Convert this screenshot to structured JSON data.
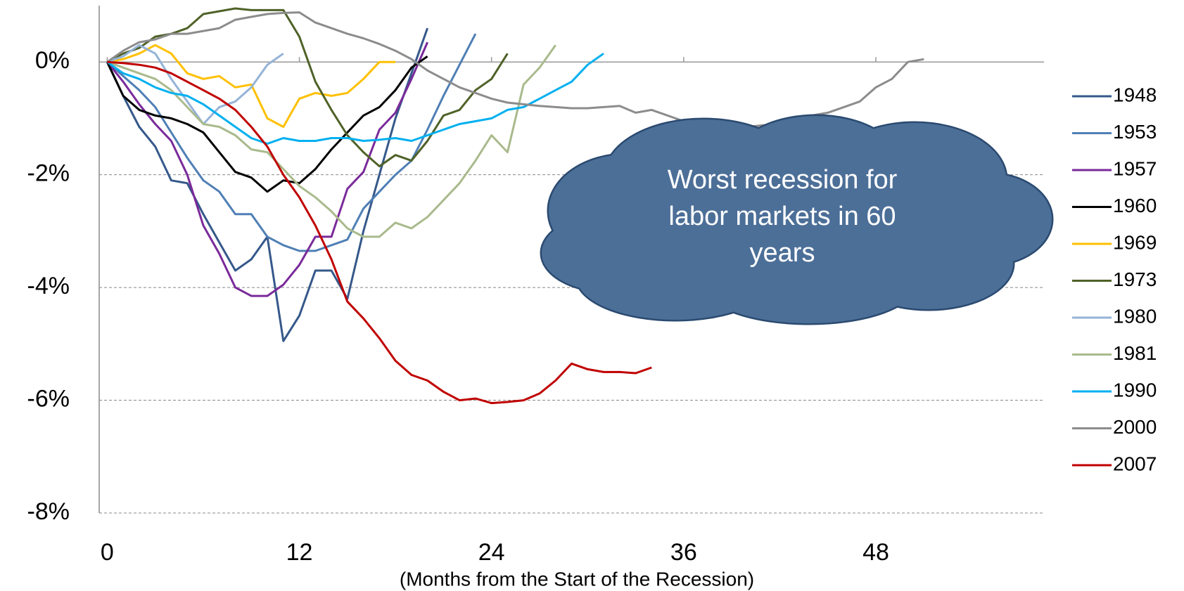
{
  "chart_data": {
    "type": "line",
    "x_label": "(Months from the Start of the Recession)",
    "annotation": [
      "Worst recession for",
      "labor markets in 60",
      "years"
    ],
    "xlim": [
      -0.5,
      58.5
    ],
    "xticks": [
      0,
      12,
      24,
      36,
      48
    ],
    "ylim": [
      -8,
      1
    ],
    "yticks": [
      {
        "value": 0,
        "label": "0%"
      },
      {
        "value": -2,
        "label": "-2%"
      },
      {
        "value": -4,
        "label": "-4%"
      },
      {
        "value": -6,
        "label": "-6%"
      },
      {
        "value": -8,
        "label": "-8%"
      }
    ],
    "grid": true,
    "legend": "right",
    "x": [
      0,
      1,
      2,
      3,
      4,
      5,
      6,
      7,
      8,
      9,
      10,
      11,
      12,
      13,
      14,
      15,
      16,
      17,
      18,
      19,
      20,
      21,
      22,
      23,
      24,
      25,
      26,
      27,
      28,
      29,
      30,
      31,
      32,
      33,
      34,
      35,
      36,
      37,
      38,
      39,
      40,
      41,
      42,
      43,
      44,
      45,
      46,
      47,
      48,
      49,
      50,
      51
    ],
    "series": [
      {
        "name": "1948",
        "color": "#35588a",
        "values": [
          0,
          -0.6,
          -1.15,
          -1.5,
          -2.1,
          -2.15,
          -2.7,
          -3.2,
          -3.7,
          -3.5,
          -3.1,
          -4.95,
          -4.5,
          -3.7,
          -3.7,
          -4.2,
          -3.0,
          -2.0,
          -1.0,
          -0.2,
          0.6,
          null,
          null,
          null,
          null,
          null,
          null,
          null,
          null,
          null,
          null,
          null,
          null,
          null,
          null,
          null,
          null,
          null,
          null,
          null,
          null,
          null,
          null,
          null,
          null,
          null,
          null,
          null,
          null,
          null,
          null,
          null
        ]
      },
      {
        "name": "1953",
        "color": "#4f7fb5",
        "values": [
          0,
          -0.25,
          -0.5,
          -0.8,
          -1.25,
          -1.7,
          -2.1,
          -2.3,
          -2.7,
          -2.7,
          -3.1,
          -3.25,
          -3.35,
          -3.35,
          -3.25,
          -3.15,
          -2.6,
          -2.3,
          -2.0,
          -1.75,
          -1.2,
          -0.6,
          -0.05,
          0.5,
          null,
          null,
          null,
          null,
          null,
          null,
          null,
          null,
          null,
          null,
          null,
          null,
          null,
          null,
          null,
          null,
          null,
          null,
          null,
          null,
          null,
          null,
          null,
          null,
          null,
          null,
          null,
          null
        ]
      },
      {
        "name": "1957",
        "color": "#7a2a9a",
        "values": [
          0,
          -0.35,
          -0.75,
          -1.1,
          -1.4,
          -2.0,
          -2.9,
          -3.4,
          -4.0,
          -4.15,
          -4.15,
          -3.95,
          -3.6,
          -3.1,
          -3.1,
          -2.25,
          -1.95,
          -1.2,
          -0.9,
          -0.3,
          0.35,
          null,
          null,
          null,
          null,
          null,
          null,
          null,
          null,
          null,
          null,
          null,
          null,
          null,
          null,
          null,
          null,
          null,
          null,
          null,
          null,
          null,
          null,
          null,
          null,
          null,
          null,
          null,
          null,
          null,
          null,
          null
        ]
      },
      {
        "name": "1960",
        "color": "#000000",
        "values": [
          0,
          -0.6,
          -0.85,
          -0.95,
          -1.0,
          -1.1,
          -1.25,
          -1.6,
          -1.95,
          -2.05,
          -2.3,
          -2.1,
          -2.15,
          -1.9,
          -1.55,
          -1.25,
          -0.95,
          -0.8,
          -0.5,
          -0.1,
          0.1,
          null,
          null,
          null,
          null,
          null,
          null,
          null,
          null,
          null,
          null,
          null,
          null,
          null,
          null,
          null,
          null,
          null,
          null,
          null,
          null,
          null,
          null,
          null,
          null,
          null,
          null,
          null,
          null,
          null,
          null,
          null
        ]
      },
      {
        "name": "1969",
        "color": "#ffc000",
        "values": [
          0,
          0.05,
          0.15,
          0.3,
          0.15,
          -0.2,
          -0.3,
          -0.25,
          -0.45,
          -0.4,
          -1.0,
          -1.15,
          -0.65,
          -0.55,
          -0.6,
          -0.55,
          -0.3,
          0,
          0,
          null,
          null,
          null,
          null,
          null,
          null,
          null,
          null,
          null,
          null,
          null,
          null,
          null,
          null,
          null,
          null,
          null,
          null,
          null,
          null,
          null,
          null,
          null,
          null,
          null,
          null,
          null,
          null,
          null,
          null,
          null,
          null,
          null
        ]
      },
      {
        "name": "1973",
        "color": "#4f6228",
        "values": [
          0,
          0.15,
          0.25,
          0.45,
          0.5,
          0.6,
          0.85,
          0.9,
          0.95,
          0.92,
          0.92,
          0.92,
          0.45,
          -0.35,
          -0.85,
          -1.3,
          -1.6,
          -1.85,
          -1.65,
          -1.75,
          -1.4,
          -0.95,
          -0.85,
          -0.5,
          -0.3,
          0.15,
          null,
          null,
          null,
          null,
          null,
          null,
          null,
          null,
          null,
          null,
          null,
          null,
          null,
          null,
          null,
          null,
          null,
          null,
          null,
          null,
          null,
          null,
          null,
          null,
          null,
          null
        ]
      },
      {
        "name": "1980",
        "color": "#95b3d7",
        "values": [
          0,
          0.1,
          0.3,
          0.15,
          -0.3,
          -0.7,
          -1.1,
          -0.8,
          -0.7,
          -0.45,
          -0.05,
          0.15,
          null,
          null,
          null,
          null,
          null,
          null,
          null,
          null,
          null,
          null,
          null,
          null,
          null,
          null,
          null,
          null,
          null,
          null,
          null,
          null,
          null,
          null,
          null,
          null,
          null,
          null,
          null,
          null,
          null,
          null,
          null,
          null,
          null,
          null,
          null,
          null,
          null,
          null,
          null,
          null
        ]
      },
      {
        "name": "1981",
        "color": "#a9ba8c",
        "values": [
          0,
          -0.1,
          -0.2,
          -0.3,
          -0.5,
          -0.8,
          -1.1,
          -1.15,
          -1.3,
          -1.55,
          -1.6,
          -1.9,
          -2.2,
          -2.4,
          -2.65,
          -2.95,
          -3.1,
          -3.1,
          -2.85,
          -2.95,
          -2.75,
          -2.45,
          -2.15,
          -1.75,
          -1.3,
          -1.6,
          -0.4,
          -0.1,
          0.3,
          null,
          null,
          null,
          null,
          null,
          null,
          null,
          null,
          null,
          null,
          null,
          null,
          null,
          null,
          null,
          null,
          null,
          null,
          null,
          null,
          null,
          null,
          null
        ]
      },
      {
        "name": "1990",
        "color": "#00b0f0",
        "values": [
          0,
          -0.2,
          -0.3,
          -0.45,
          -0.55,
          -0.6,
          -0.75,
          -0.95,
          -1.15,
          -1.35,
          -1.45,
          -1.35,
          -1.4,
          -1.4,
          -1.35,
          -1.35,
          -1.4,
          -1.38,
          -1.35,
          -1.4,
          -1.3,
          -1.2,
          -1.1,
          -1.05,
          -1.0,
          -0.85,
          -0.8,
          -0.65,
          -0.5,
          -0.35,
          -0.05,
          0.15,
          null,
          null,
          null,
          null,
          null,
          null,
          null,
          null,
          null,
          null,
          null,
          null,
          null,
          null,
          null,
          null,
          null,
          null,
          null,
          null
        ]
      },
      {
        "name": "2000",
        "color": "#8c8c8c",
        "values": [
          0,
          0.2,
          0.35,
          0.4,
          0.5,
          0.5,
          0.55,
          0.6,
          0.75,
          0.8,
          0.85,
          0.87,
          0.88,
          0.7,
          0.6,
          0.5,
          0.42,
          0.32,
          0.2,
          0.05,
          -0.15,
          -0.3,
          -0.45,
          -0.55,
          -0.65,
          -0.72,
          -0.75,
          -0.78,
          -0.8,
          -0.82,
          -0.82,
          -0.8,
          -0.78,
          -0.9,
          -0.85,
          -0.95,
          -1.05,
          -1.15,
          -1.15,
          -1.15,
          -1.15,
          -1.12,
          -1.15,
          -1.1,
          -0.95,
          -0.9,
          -0.8,
          -0.7,
          -0.45,
          -0.3,
          0,
          0.05
        ]
      },
      {
        "name": "2007",
        "color": "#c00000",
        "values": [
          0,
          -0.02,
          -0.05,
          -0.1,
          -0.2,
          -0.35,
          -0.5,
          -0.65,
          -0.85,
          -1.15,
          -1.5,
          -2.0,
          -2.4,
          -2.9,
          -3.5,
          -4.25,
          -4.55,
          -4.9,
          -5.3,
          -5.55,
          -5.65,
          -5.85,
          -6.0,
          -5.97,
          -6.05,
          -6.03,
          -6.0,
          -5.88,
          -5.65,
          -5.35,
          -5.45,
          -5.5,
          -5.5,
          -5.52,
          -5.42,
          null,
          null,
          null,
          null,
          null,
          null,
          null,
          null,
          null,
          null,
          null,
          null,
          null,
          null,
          null,
          null,
          null
        ]
      }
    ]
  }
}
